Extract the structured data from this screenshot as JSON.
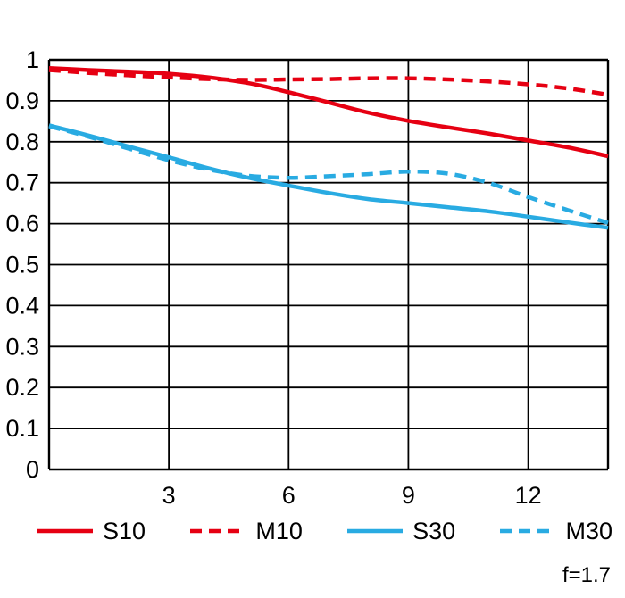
{
  "chart_data": {
    "type": "line",
    "title": "",
    "xlabel": "",
    "ylabel": "",
    "xlim": [
      0,
      14
    ],
    "ylim": [
      0,
      1
    ],
    "xticks": [
      3,
      6,
      9,
      12
    ],
    "xtick_labels": [
      "3",
      "6",
      "9",
      "12"
    ],
    "yticks": [
      0,
      0.1,
      0.2,
      0.3,
      0.4,
      0.5,
      0.6,
      0.7,
      0.8,
      0.9,
      1
    ],
    "ytick_labels": [
      "0",
      "0.1",
      "0.2",
      "0.3",
      "0.4",
      "0.5",
      "0.6",
      "0.7",
      "0.8",
      "0.9",
      "1"
    ],
    "grid": "on",
    "grid_color": "#000000",
    "legend_position": "bottom",
    "annotation": "f=1.7",
    "x": [
      0,
      1,
      2,
      3,
      4,
      5,
      6,
      7,
      8,
      9,
      10,
      11,
      12,
      13,
      14
    ],
    "series": [
      {
        "name": "S10",
        "color": "#e60012",
        "style": "solid",
        "values": [
          0.98,
          0.975,
          0.971,
          0.966,
          0.957,
          0.943,
          0.921,
          0.896,
          0.871,
          0.851,
          0.835,
          0.82,
          0.803,
          0.786,
          0.765
        ]
      },
      {
        "name": "M10",
        "color": "#e60012",
        "style": "dashed",
        "values": [
          0.975,
          0.968,
          0.962,
          0.957,
          0.953,
          0.951,
          0.952,
          0.953,
          0.955,
          0.955,
          0.952,
          0.947,
          0.94,
          0.93,
          0.915
        ]
      },
      {
        "name": "S30",
        "color": "#29abe2",
        "style": "solid",
        "values": [
          0.84,
          0.815,
          0.788,
          0.762,
          0.735,
          0.712,
          0.693,
          0.675,
          0.66,
          0.65,
          0.64,
          0.63,
          0.617,
          0.603,
          0.59
        ]
      },
      {
        "name": "M30",
        "color": "#29abe2",
        "style": "dashed",
        "values": [
          0.838,
          0.812,
          0.783,
          0.755,
          0.732,
          0.717,
          0.712,
          0.716,
          0.721,
          0.727,
          0.722,
          0.7,
          0.665,
          0.633,
          0.602
        ]
      }
    ]
  }
}
